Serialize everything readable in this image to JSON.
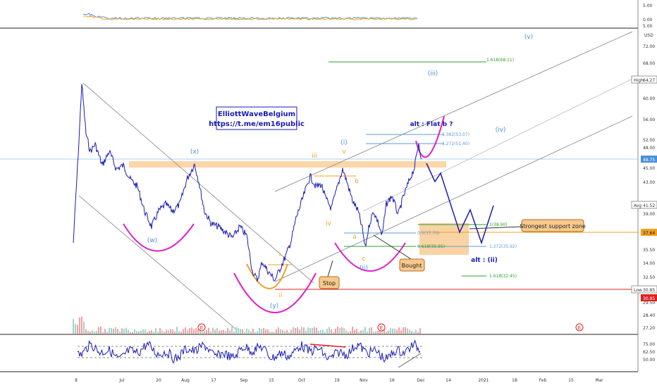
{
  "chart_data": {
    "type": "line",
    "watermark_title": "ElliottWaveBelgium",
    "watermark_link": "https://t.me/em16public",
    "currency": "USD",
    "x_ticks": [
      "8",
      "Jul",
      "20",
      "Aug",
      "17",
      "Sep",
      "15",
      "Oct",
      "19",
      "Nov",
      "16",
      "Dec",
      "14",
      "2021",
      "18",
      "Feb",
      "15",
      "Mar"
    ],
    "y_ticks": [
      "72.00",
      "68.00",
      "60.00",
      "56.00",
      "52.00",
      "48.00",
      "45.00",
      "43.00",
      "39.00",
      "35.50",
      "34.00",
      "32.50",
      "29.50",
      "28.40",
      "27.20"
    ],
    "price_markers": [
      {
        "label": "High",
        "value": "64.27"
      },
      {
        "label": "",
        "value": "48.75"
      },
      {
        "label": "Avg",
        "value": "41.52"
      },
      {
        "label": "",
        "value": "37.64"
      },
      {
        "label": "Low",
        "value": "30.85"
      },
      {
        "label": "",
        "value": "30.85"
      }
    ],
    "top_panel_ticks": [
      "5.00",
      "0.00",
      "5.00"
    ],
    "bottom_panel_ticks": [
      "75.00",
      "62.50",
      "50.00"
    ],
    "wave_labels": [
      "(x)",
      "(w)",
      "(y)",
      "(i)",
      "(ii)",
      "(iii)",
      "(iv)",
      "(v)",
      "alt : Flat b ?",
      "alt : (ii)",
      "iii",
      "iv",
      "v",
      "a",
      "b",
      "c",
      "i",
      "ii"
    ],
    "fib_levels": [
      {
        "label": "1.618(68.11)",
        "value": 68.11
      },
      {
        "label": "1.382(53.07)",
        "value": 53.07
      },
      {
        "label": "1.272(51.40)",
        "value": 51.4
      },
      {
        "label": "1(38.90)",
        "value": 38.9
      },
      {
        "label": "0.5(37.70)",
        "value": 37.7
      },
      {
        "label": "0.618(35.95)",
        "value": 35.95
      },
      {
        "label": "1.272(35.92)",
        "value": 35.92
      },
      {
        "label": "1.618(32.45)",
        "value": 32.45
      }
    ],
    "callouts": [
      "Stop",
      "Bought",
      "Strongest support zone"
    ],
    "event_markers": [
      "E",
      "E",
      "E"
    ],
    "colors": {
      "price": "#1a1ab8",
      "fib_green": "#2aa02a",
      "fib_blue": "#5b9bd5",
      "magenta": "#e020c8",
      "orange": "#f0a020",
      "red": "#e02020",
      "projection": "#1a1ab8"
    }
  }
}
